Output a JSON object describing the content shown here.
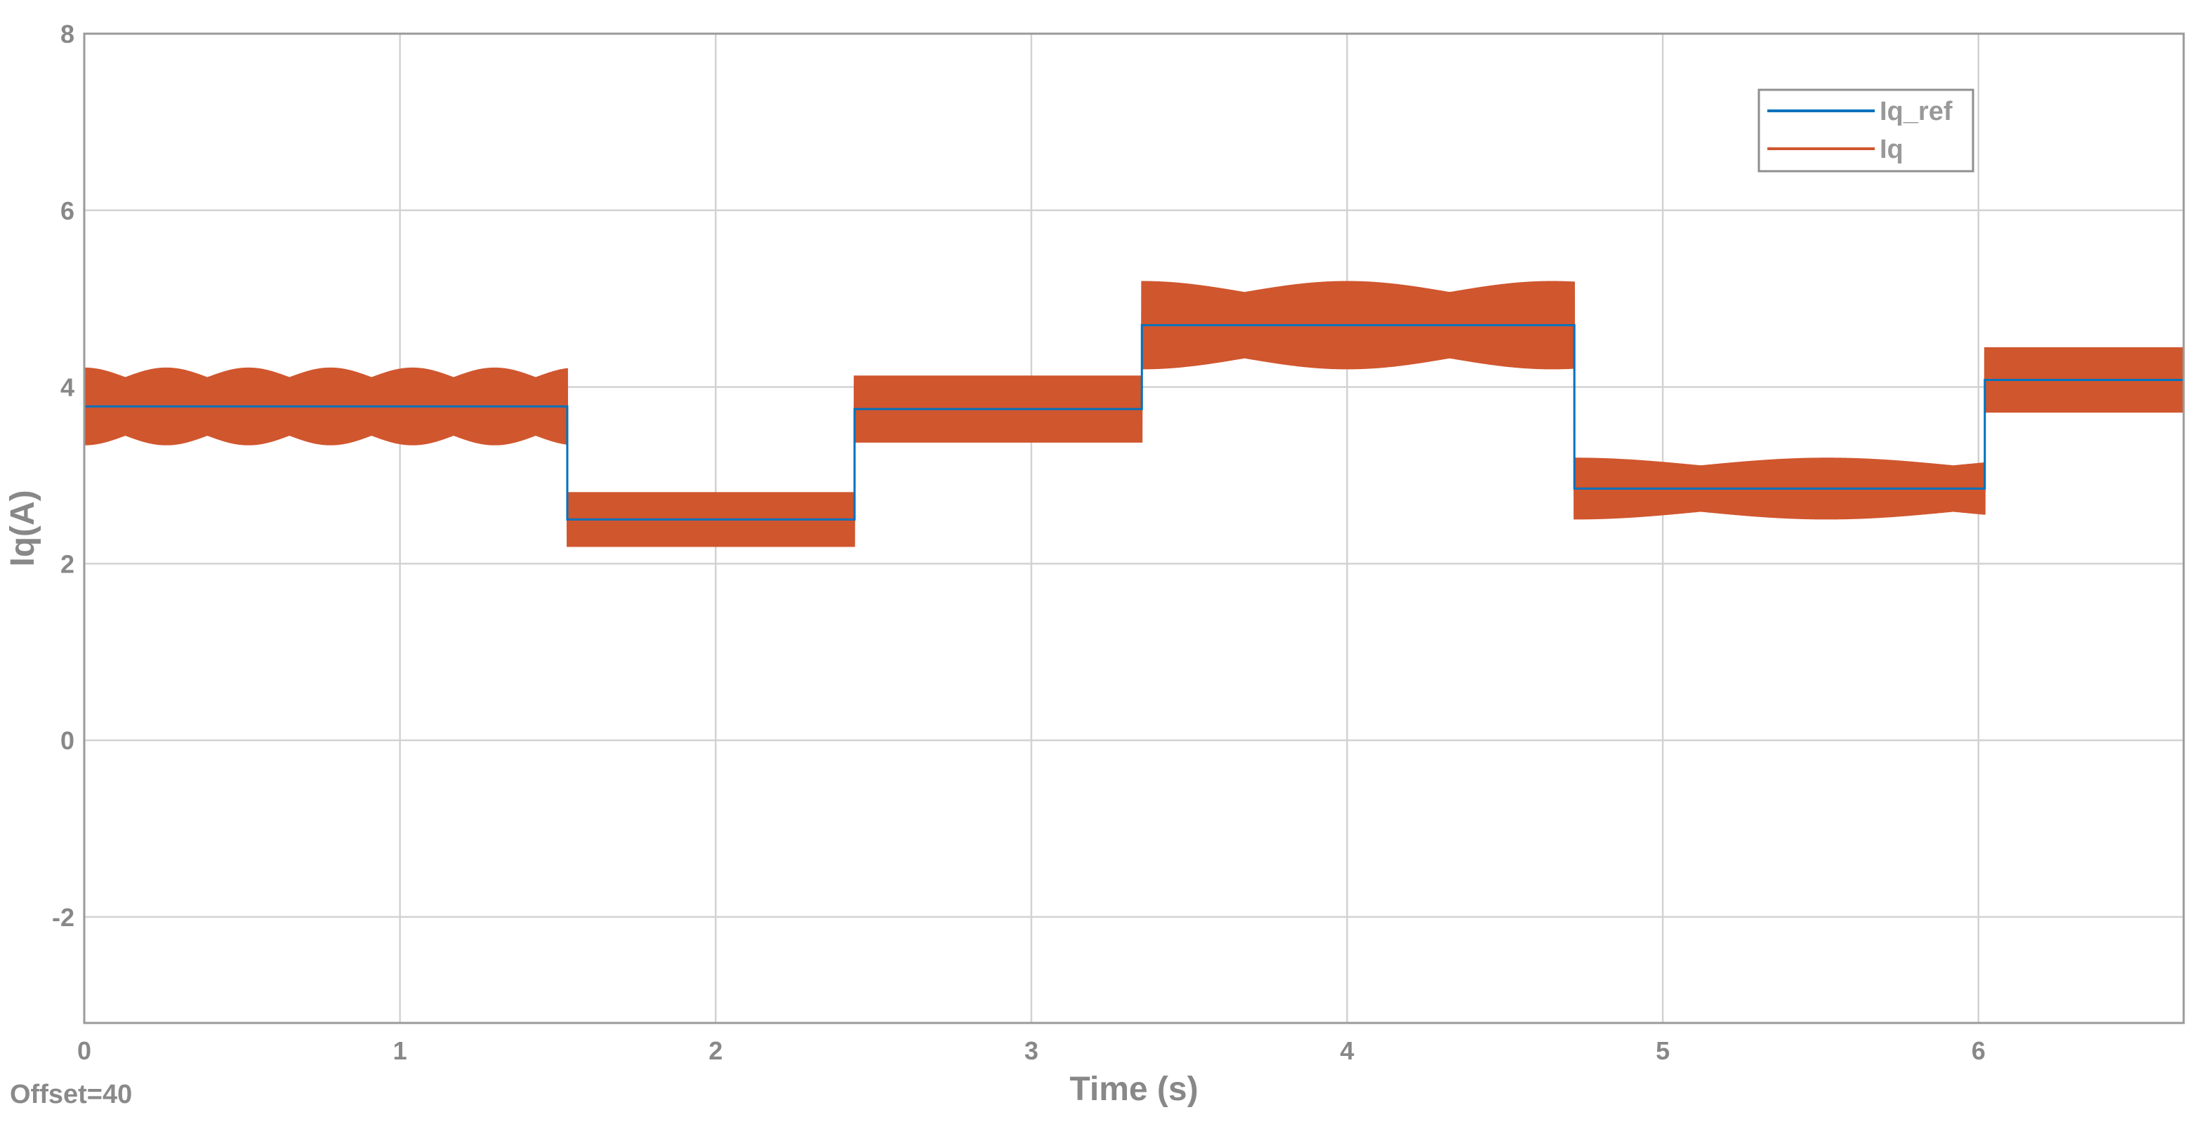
{
  "footer": {
    "offset_label": "Offset=40"
  },
  "legend": {
    "position": "top-right"
  },
  "colors": {
    "iq_ref": "#0072bd",
    "iq": "#d0562e",
    "grid": "#d2d2d2",
    "axis": "#888888"
  },
  "chart_data": {
    "type": "line",
    "title": "",
    "xlabel": "Time (s)",
    "ylabel": "Iq(A)",
    "xlim": [
      0,
      6.65
    ],
    "ylim": [
      -3.2,
      8
    ],
    "grid": true,
    "xticks": [
      0,
      1,
      2,
      3,
      4,
      5,
      6
    ],
    "xtick_labels": [
      "0",
      "1",
      "2",
      "3",
      "4",
      "5",
      "6"
    ],
    "yticks": [
      -2,
      0,
      2,
      4,
      6,
      8
    ],
    "ytick_labels": [
      "-2",
      "0",
      "2",
      "4",
      "6",
      "8"
    ],
    "series": [
      {
        "name": "Iq_ref",
        "color": "#0072bd",
        "kind": "step",
        "segments": [
          {
            "t0": 0,
            "t1": 1.53,
            "value": 3.78
          },
          {
            "t0": 1.53,
            "t1": 2.44,
            "value": 2.5
          },
          {
            "t0": 2.44,
            "t1": 3.35,
            "value": 3.75
          },
          {
            "t0": 3.35,
            "t1": 4.72,
            "value": 4.7
          },
          {
            "t0": 4.72,
            "t1": 6.02,
            "value": 2.85
          },
          {
            "t0": 6.02,
            "t1": 6.65,
            "value": 4.08
          }
        ]
      },
      {
        "name": "Iq",
        "color": "#d0562e",
        "kind": "ripple",
        "segments": [
          {
            "t0": 0,
            "t1": 1.53,
            "mean": 3.78,
            "ripple": 0.44,
            "beat_period": 0.26
          },
          {
            "t0": 1.53,
            "t1": 2.44,
            "mean": 2.5,
            "ripple": 0.31,
            "beat_period": 0
          },
          {
            "t0": 2.44,
            "t1": 3.35,
            "mean": 3.75,
            "ripple": 0.38,
            "beat_period": 0
          },
          {
            "t0": 3.35,
            "t1": 4.72,
            "mean": 4.7,
            "ripple": 0.5,
            "beat_period": 0.65
          },
          {
            "t0": 4.72,
            "t1": 6.02,
            "mean": 2.85,
            "ripple": 0.35,
            "beat_period": 0.8
          },
          {
            "t0": 6.02,
            "t1": 6.65,
            "mean": 4.08,
            "ripple": 0.37,
            "beat_period": 0
          }
        ]
      }
    ]
  }
}
